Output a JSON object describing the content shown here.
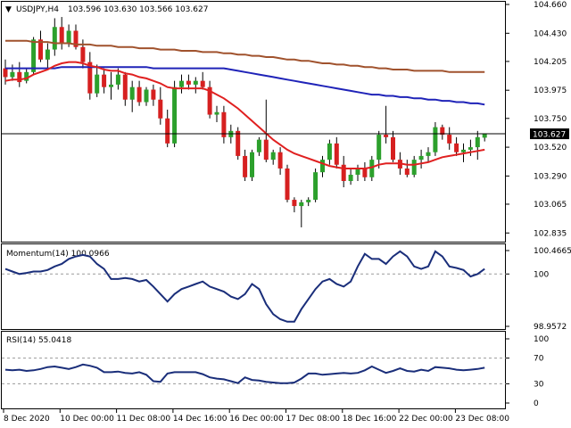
{
  "colors": {
    "background": "#ffffff",
    "frame": "#000000",
    "bull": "#2ca02c",
    "bear": "#d62020",
    "wick": "#000000",
    "ema_fast": "#e02020",
    "ema_mid": "#1f23b8",
    "ema_slow": "#a0522d",
    "osc_line": "#1a2e7a",
    "price_label_bg": "#000000",
    "price_label_fg": "#ffffff",
    "grid_dash": "#9a9a9a"
  },
  "header": {
    "symbol": "USDJPY,H4",
    "ohlc": "103.596 103.630 103.566 103.627"
  },
  "chart_data": [
    {
      "type": "candlestick",
      "panel": "price",
      "ylim": [
        102.78,
        104.66
      ],
      "y_ticks": [
        "104.660",
        "104.430",
        "104.205",
        "103.975",
        "103.750",
        "103.520",
        "103.290",
        "103.065",
        "102.835"
      ],
      "current_price": 103.627,
      "current_price_label": "103.627",
      "candles": [
        {
          "o": 104.15,
          "h": 104.22,
          "l": 104.02,
          "c": 104.08
        },
        {
          "o": 104.08,
          "h": 104.18,
          "l": 104.05,
          "c": 104.12
        },
        {
          "o": 104.12,
          "h": 104.2,
          "l": 104.0,
          "c": 104.04
        },
        {
          "o": 104.05,
          "h": 104.15,
          "l": 104.03,
          "c": 104.12
        },
        {
          "o": 104.12,
          "h": 104.4,
          "l": 104.1,
          "c": 104.38
        },
        {
          "o": 104.38,
          "h": 104.45,
          "l": 104.2,
          "c": 104.22
        },
        {
          "o": 104.22,
          "h": 104.35,
          "l": 104.15,
          "c": 104.3
        },
        {
          "o": 104.3,
          "h": 104.55,
          "l": 104.25,
          "c": 104.48
        },
        {
          "o": 104.48,
          "h": 104.56,
          "l": 104.3,
          "c": 104.35
        },
        {
          "o": 104.35,
          "h": 104.5,
          "l": 104.32,
          "c": 104.45
        },
        {
          "o": 104.45,
          "h": 104.5,
          "l": 104.3,
          "c": 104.32
        },
        {
          "o": 104.32,
          "h": 104.38,
          "l": 104.15,
          "c": 104.2
        },
        {
          "o": 104.2,
          "h": 104.28,
          "l": 103.9,
          "c": 103.95
        },
        {
          "o": 103.95,
          "h": 104.18,
          "l": 103.92,
          "c": 104.1
        },
        {
          "o": 104.1,
          "h": 104.15,
          "l": 103.95,
          "c": 104.0
        },
        {
          "o": 104.0,
          "h": 104.12,
          "l": 103.9,
          "c": 104.02
        },
        {
          "o": 104.02,
          "h": 104.15,
          "l": 103.98,
          "c": 104.1
        },
        {
          "o": 104.1,
          "h": 104.12,
          "l": 103.85,
          "c": 103.9
        },
        {
          "o": 103.9,
          "h": 104.05,
          "l": 103.8,
          "c": 104.0
        },
        {
          "o": 104.0,
          "h": 104.05,
          "l": 103.85,
          "c": 103.88
        },
        {
          "o": 103.88,
          "h": 104.0,
          "l": 103.85,
          "c": 103.98
        },
        {
          "o": 103.98,
          "h": 104.02,
          "l": 103.85,
          "c": 103.9
        },
        {
          "o": 103.9,
          "h": 104.0,
          "l": 103.7,
          "c": 103.75
        },
        {
          "o": 103.75,
          "h": 103.82,
          "l": 103.52,
          "c": 103.55
        },
        {
          "o": 103.55,
          "h": 104.05,
          "l": 103.52,
          "c": 104.0
        },
        {
          "o": 104.0,
          "h": 104.1,
          "l": 103.95,
          "c": 104.05
        },
        {
          "o": 104.05,
          "h": 104.1,
          "l": 103.98,
          "c": 104.02
        },
        {
          "o": 104.02,
          "h": 104.08,
          "l": 103.95,
          "c": 104.05
        },
        {
          "o": 104.05,
          "h": 104.12,
          "l": 103.98,
          "c": 104.0
        },
        {
          "o": 104.0,
          "h": 104.05,
          "l": 103.75,
          "c": 103.78
        },
        {
          "o": 103.78,
          "h": 103.85,
          "l": 103.72,
          "c": 103.8
        },
        {
          "o": 103.8,
          "h": 103.85,
          "l": 103.55,
          "c": 103.6
        },
        {
          "o": 103.6,
          "h": 103.7,
          "l": 103.55,
          "c": 103.65
        },
        {
          "o": 103.65,
          "h": 103.68,
          "l": 103.42,
          "c": 103.45
        },
        {
          "o": 103.45,
          "h": 103.5,
          "l": 103.25,
          "c": 103.28
        },
        {
          "o": 103.28,
          "h": 103.5,
          "l": 103.25,
          "c": 103.48
        },
        {
          "o": 103.48,
          "h": 103.6,
          "l": 103.45,
          "c": 103.58
        },
        {
          "o": 103.58,
          "h": 103.9,
          "l": 103.4,
          "c": 103.42
        },
        {
          "o": 103.42,
          "h": 103.5,
          "l": 103.38,
          "c": 103.48
        },
        {
          "o": 103.48,
          "h": 103.52,
          "l": 103.3,
          "c": 103.35
        },
        {
          "o": 103.35,
          "h": 103.38,
          "l": 103.08,
          "c": 103.1
        },
        {
          "o": 103.1,
          "h": 103.12,
          "l": 103.0,
          "c": 103.05
        },
        {
          "o": 103.05,
          "h": 103.1,
          "l": 102.88,
          "c": 103.08
        },
        {
          "o": 103.08,
          "h": 103.12,
          "l": 103.05,
          "c": 103.1
        },
        {
          "o": 103.1,
          "h": 103.35,
          "l": 103.08,
          "c": 103.32
        },
        {
          "o": 103.32,
          "h": 103.45,
          "l": 103.28,
          "c": 103.42
        },
        {
          "o": 103.42,
          "h": 103.58,
          "l": 103.38,
          "c": 103.55
        },
        {
          "o": 103.55,
          "h": 103.6,
          "l": 103.35,
          "c": 103.38
        },
        {
          "o": 103.38,
          "h": 103.45,
          "l": 103.2,
          "c": 103.25
        },
        {
          "o": 103.25,
          "h": 103.35,
          "l": 103.22,
          "c": 103.3
        },
        {
          "o": 103.3,
          "h": 103.38,
          "l": 103.25,
          "c": 103.35
        },
        {
          "o": 103.35,
          "h": 103.4,
          "l": 103.25,
          "c": 103.28
        },
        {
          "o": 103.28,
          "h": 103.45,
          "l": 103.25,
          "c": 103.42
        },
        {
          "o": 103.42,
          "h": 103.65,
          "l": 103.35,
          "c": 103.62
        },
        {
          "o": 103.62,
          "h": 103.85,
          "l": 103.55,
          "c": 103.6
        },
        {
          "o": 103.6,
          "h": 103.65,
          "l": 103.4,
          "c": 103.42
        },
        {
          "o": 103.42,
          "h": 103.48,
          "l": 103.3,
          "c": 103.35
        },
        {
          "o": 103.35,
          "h": 103.42,
          "l": 103.28,
          "c": 103.3
        },
        {
          "o": 103.3,
          "h": 103.45,
          "l": 103.28,
          "c": 103.42
        },
        {
          "o": 103.42,
          "h": 103.5,
          "l": 103.35,
          "c": 103.45
        },
        {
          "o": 103.45,
          "h": 103.52,
          "l": 103.4,
          "c": 103.48
        },
        {
          "o": 103.48,
          "h": 103.72,
          "l": 103.45,
          "c": 103.68
        },
        {
          "o": 103.68,
          "h": 103.7,
          "l": 103.58,
          "c": 103.62
        },
        {
          "o": 103.62,
          "h": 103.68,
          "l": 103.5,
          "c": 103.55
        },
        {
          "o": 103.55,
          "h": 103.6,
          "l": 103.45,
          "c": 103.48
        },
        {
          "o": 103.48,
          "h": 103.55,
          "l": 103.4,
          "c": 103.5
        },
        {
          "o": 103.5,
          "h": 103.58,
          "l": 103.45,
          "c": 103.52
        },
        {
          "o": 103.52,
          "h": 103.65,
          "l": 103.42,
          "c": 103.6
        },
        {
          "o": 103.596,
          "h": 103.63,
          "l": 103.566,
          "c": 103.627
        }
      ],
      "ema_fast": [
        104.05,
        104.06,
        104.06,
        104.07,
        104.1,
        104.12,
        104.14,
        104.17,
        104.19,
        104.2,
        104.2,
        104.19,
        104.17,
        104.16,
        104.14,
        104.13,
        104.13,
        104.11,
        104.1,
        104.08,
        104.07,
        104.05,
        104.03,
        104.0,
        103.99,
        103.99,
        103.99,
        103.99,
        103.99,
        103.97,
        103.94,
        103.91,
        103.87,
        103.83,
        103.78,
        103.73,
        103.68,
        103.63,
        103.58,
        103.54,
        103.5,
        103.47,
        103.45,
        103.43,
        103.41,
        103.39,
        103.37,
        103.36,
        103.35,
        103.35,
        103.35,
        103.35,
        103.36,
        103.38,
        103.39,
        103.39,
        103.39,
        103.38,
        103.38,
        103.39,
        103.4,
        103.42,
        103.44,
        103.45,
        103.46,
        103.47,
        103.48,
        103.49,
        103.5
      ],
      "ema_mid": [
        104.15,
        104.15,
        104.15,
        104.15,
        104.15,
        104.15,
        104.15,
        104.15,
        104.16,
        104.16,
        104.16,
        104.16,
        104.16,
        104.16,
        104.16,
        104.16,
        104.16,
        104.16,
        104.16,
        104.16,
        104.16,
        104.15,
        104.15,
        104.15,
        104.15,
        104.15,
        104.15,
        104.15,
        104.15,
        104.15,
        104.15,
        104.15,
        104.14,
        104.13,
        104.12,
        104.11,
        104.1,
        104.09,
        104.08,
        104.07,
        104.06,
        104.05,
        104.04,
        104.03,
        104.02,
        104.01,
        104.0,
        103.99,
        103.98,
        103.97,
        103.96,
        103.95,
        103.94,
        103.94,
        103.93,
        103.93,
        103.92,
        103.92,
        103.91,
        103.91,
        103.9,
        103.9,
        103.89,
        103.89,
        103.88,
        103.88,
        103.87,
        103.87,
        103.86
      ],
      "ema_slow": [
        104.37,
        104.37,
        104.37,
        104.37,
        104.36,
        104.36,
        104.36,
        104.35,
        104.35,
        104.35,
        104.34,
        104.34,
        104.34,
        104.33,
        104.33,
        104.33,
        104.32,
        104.32,
        104.32,
        104.31,
        104.31,
        104.31,
        104.3,
        104.3,
        104.3,
        104.29,
        104.29,
        104.29,
        104.28,
        104.28,
        104.28,
        104.27,
        104.27,
        104.26,
        104.26,
        104.25,
        104.25,
        104.24,
        104.24,
        104.23,
        104.22,
        104.22,
        104.21,
        104.21,
        104.2,
        104.19,
        104.19,
        104.18,
        104.18,
        104.17,
        104.17,
        104.16,
        104.16,
        104.15,
        104.15,
        104.14,
        104.14,
        104.14,
        104.13,
        104.13,
        104.13,
        104.13,
        104.13,
        104.12,
        104.12,
        104.12,
        104.12,
        104.12,
        104.12
      ]
    },
    {
      "type": "line",
      "panel": "momentum",
      "title": "Momentum(14) 100.0966",
      "ylim": [
        98.9572,
        100.4665
      ],
      "y_ticks": [
        "100.4665",
        "100",
        "98.9572"
      ],
      "reference_line": 100,
      "values": [
        100.1,
        100.05,
        100.0,
        100.02,
        100.05,
        100.05,
        100.08,
        100.15,
        100.2,
        100.3,
        100.35,
        100.38,
        100.35,
        100.2,
        100.1,
        99.9,
        99.9,
        99.92,
        99.9,
        99.85,
        99.88,
        99.75,
        99.6,
        99.45,
        99.6,
        99.7,
        99.75,
        99.8,
        99.85,
        99.75,
        99.7,
        99.65,
        99.55,
        99.5,
        99.6,
        99.8,
        99.7,
        99.4,
        99.2,
        99.1,
        99.05,
        99.05,
        99.3,
        99.5,
        99.7,
        99.85,
        99.9,
        99.8,
        99.75,
        99.85,
        100.15,
        100.4,
        100.3,
        100.3,
        100.2,
        100.35,
        100.45,
        100.35,
        100.15,
        100.1,
        100.15,
        100.45,
        100.35,
        100.15,
        100.12,
        100.08,
        99.95,
        100.0,
        100.1
      ]
    },
    {
      "type": "line",
      "panel": "rsi",
      "title": "RSI(14) 55.0418",
      "ylim": [
        0,
        100
      ],
      "y_ticks": [
        "100",
        "70",
        "30",
        "0"
      ],
      "levels": [
        70,
        30
      ],
      "values": [
        52,
        51,
        52,
        50,
        51,
        53,
        56,
        57,
        55,
        53,
        56,
        60,
        58,
        55,
        48,
        48,
        49,
        47,
        46,
        48,
        44,
        34,
        33,
        46,
        48,
        48,
        48,
        48,
        45,
        40,
        38,
        37,
        34,
        31,
        40,
        36,
        35,
        33,
        32,
        31,
        31,
        32,
        38,
        46,
        46,
        44,
        45,
        46,
        47,
        46,
        47,
        51,
        57,
        52,
        47,
        50,
        54,
        50,
        49,
        52,
        50,
        56,
        55,
        54,
        52,
        51,
        52,
        53,
        55
      ]
    },
    {
      "type": "axis",
      "panel": "time",
      "x_labels": [
        "8 Dec 2020",
        "10 Dec 00:00",
        "11 Dec 08:00",
        "14 Dec 16:00",
        "16 Dec 00:00",
        "17 Dec 08:00",
        "18 Dec 16:00",
        "22 Dec 00:00",
        "23 Dec 08:00"
      ]
    }
  ]
}
